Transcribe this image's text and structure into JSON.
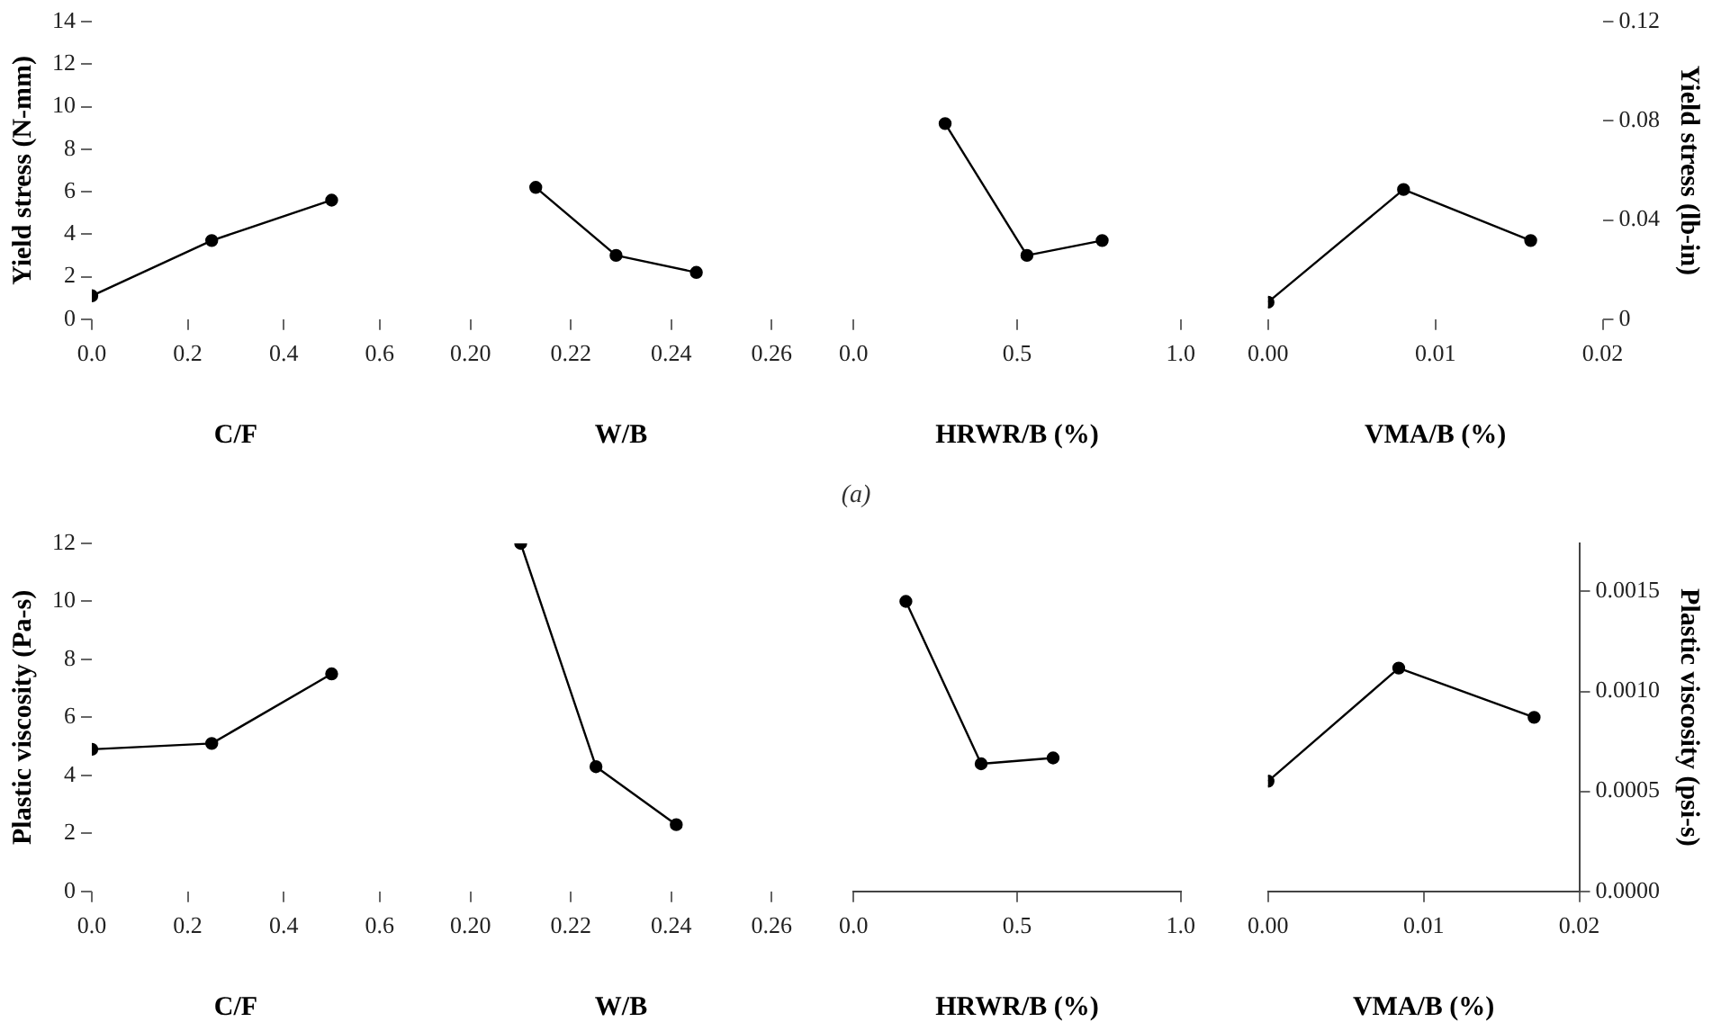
{
  "chart_data": [
    {
      "type": "line",
      "x": [
        0,
        0.25,
        0.5
      ],
      "series": [
        {
          "color": "#000000",
          "values": [
            1.1,
            3.7,
            5.6
          ]
        }
      ],
      "xlim": [
        0,
        0.6
      ],
      "xticks": [
        {
          "value": 0,
          "label": "0.0"
        },
        0.2,
        0.4,
        0.6
      ],
      "xlabel": "C/F",
      "ylim": [
        0,
        14
      ],
      "yticks": [
        0,
        2,
        4,
        6,
        8,
        10,
        12,
        14
      ],
      "ylabel": "Yield stress (N-mm)",
      "marker": "circle",
      "annotations": [
        "(a)"
      ]
    },
    {
      "type": "line",
      "x": [
        0.213,
        0.229,
        0.245
      ],
      "series": [
        {
          "color": "#000000",
          "values": [
            6.2,
            3.0,
            2.2
          ]
        }
      ],
      "xlim": [
        0.2,
        0.26
      ],
      "xticks": [
        {
          "value": 0.2,
          "label": "0.20"
        },
        0.22,
        0.24,
        0.26
      ],
      "xlabel": "W/B",
      "ylim": [
        0,
        14
      ],
      "tick_labels": "x",
      "marker": "circle"
    },
    {
      "type": "line",
      "x": [
        0.28,
        0.53,
        0.76
      ],
      "series": [
        {
          "color": "#000000",
          "values": [
            9.2,
            3.0,
            3.7
          ]
        }
      ],
      "xlim": [
        0,
        1
      ],
      "xticks": [
        {
          "value": 0,
          "label": "0.0"
        },
        0.5,
        {
          "value": 1,
          "label": "1.0"
        }
      ],
      "xlabel": "HRWR/B (%)",
      "ylim": [
        0,
        14
      ],
      "tick_labels": "x",
      "marker": "circle"
    },
    {
      "type": "line",
      "x": [
        0,
        0.0081,
        0.0157
      ],
      "series": [
        {
          "color": "#000000",
          "values": [
            0.8,
            6.1,
            3.7
          ]
        }
      ],
      "xlim": [
        0,
        0.02
      ],
      "xticks": [
        {
          "value": 0,
          "label": "0.00"
        },
        0.01,
        0.02
      ],
      "xlabel": "VMA/B (%)",
      "ylim": [
        0,
        14
      ],
      "y2lim": [
        0,
        0.12
      ],
      "y2ticks": [
        0,
        0.04,
        0.08,
        0.12
      ],
      "y2label": "Yield stress (lb-in)",
      "marker": "circle"
    },
    {
      "type": "line",
      "x": [
        0,
        0.25,
        0.5
      ],
      "series": [
        {
          "color": "#000000",
          "values": [
            4.9,
            5.1,
            7.5
          ]
        }
      ],
      "xlim": [
        0,
        0.6
      ],
      "xticks": [
        {
          "value": 0,
          "label": "0.0"
        },
        0.2,
        0.4,
        0.6
      ],
      "xlabel": "C/F",
      "ylim": [
        0,
        12
      ],
      "yticks": [
        0,
        2,
        4,
        6,
        8,
        10,
        12
      ],
      "ylabel": "Plastic viscosity (Pa-s)",
      "marker": "circle"
    },
    {
      "type": "line",
      "x": [
        0.21,
        0.225,
        0.241
      ],
      "series": [
        {
          "color": "#000000",
          "values": [
            12.0,
            4.3,
            2.3
          ]
        }
      ],
      "xlim": [
        0.2,
        0.26
      ],
      "xticks": [
        {
          "value": 0.2,
          "label": "0.20"
        },
        0.22,
        0.24,
        0.26
      ],
      "xlabel": "W/B",
      "ylim": [
        0,
        12
      ],
      "tick_labels": "x",
      "marker": "circle"
    },
    {
      "type": "line",
      "x": [
        0.16,
        0.39,
        0.61
      ],
      "series": [
        {
          "color": "#000000",
          "values": [
            10.0,
            4.4,
            4.6
          ]
        }
      ],
      "xlim": [
        0,
        1
      ],
      "xticks": [
        {
          "value": 0,
          "label": "0.0"
        },
        0.5,
        {
          "value": 1,
          "label": "1.0"
        }
      ],
      "xlabel": "HRWR/B (%)",
      "ylim": [
        0,
        12
      ],
      "tick_labels": "x",
      "marker": "circle"
    },
    {
      "type": "line",
      "x": [
        0,
        0.0084,
        0.0171
      ],
      "series": [
        {
          "color": "#000000",
          "values": [
            3.8,
            7.7,
            6.0
          ]
        }
      ],
      "xlim": [
        0,
        0.02
      ],
      "xticks": [
        {
          "value": 0,
          "label": "0.00"
        },
        0.01,
        0.02
      ],
      "xlabel": "VMA/B (%)",
      "ylim": [
        0,
        12
      ],
      "y2lim": [
        0,
        0.00174
      ],
      "y2ticks": [
        {
          "value": 0,
          "label": "0.0000"
        },
        {
          "value": 0.0005,
          "label": "0.0005"
        },
        {
          "value": 0.001,
          "label": "0.0010"
        },
        {
          "value": 0.0015,
          "label": "0.0015"
        }
      ],
      "y2label": "Plastic viscosity (psi-s)",
      "marker": "circle"
    }
  ]
}
